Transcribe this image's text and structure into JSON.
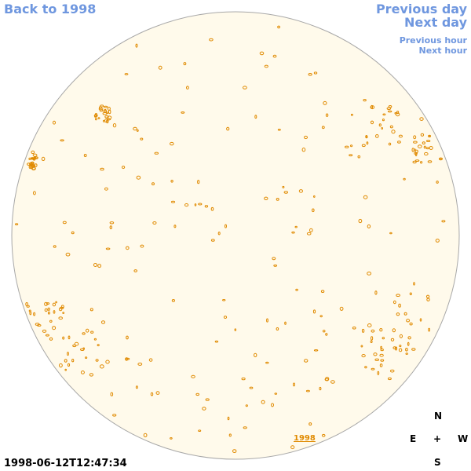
{
  "nav": {
    "back": "Back to 1998",
    "previous_day": "Previous day",
    "next_day": "Next day",
    "previous_hour": "Previous hour",
    "next_hour": "Next hour"
  },
  "disk": {
    "year_link": "1998"
  },
  "timestamp": "1998-06-12T12:47:34",
  "compass": {
    "north": "N",
    "east": "E",
    "center": "+",
    "west": "W",
    "south": "S"
  }
}
